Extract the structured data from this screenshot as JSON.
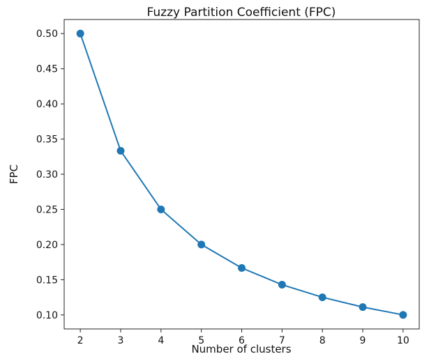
{
  "chart_data": {
    "type": "line",
    "title": "Fuzzy Partition Coefficient (FPC)",
    "xlabel": "Number of clusters",
    "ylabel": "FPC",
    "x": [
      2,
      3,
      4,
      5,
      6,
      7,
      8,
      9,
      10
    ],
    "series": [
      {
        "values": [
          0.5,
          0.3333,
          0.25,
          0.2,
          0.1667,
          0.1429,
          0.125,
          0.1111,
          0.1
        ]
      }
    ],
    "xticks": [
      "2",
      "3",
      "4",
      "5",
      "6",
      "7",
      "8",
      "9",
      "10"
    ],
    "yticks": [
      "0.10",
      "0.15",
      "0.20",
      "0.25",
      "0.30",
      "0.35",
      "0.40",
      "0.45",
      "0.50"
    ],
    "xlim": [
      1.6,
      10.4
    ],
    "ylim": [
      0.08,
      0.52
    ],
    "grid": false,
    "color": "#1f77b4"
  }
}
